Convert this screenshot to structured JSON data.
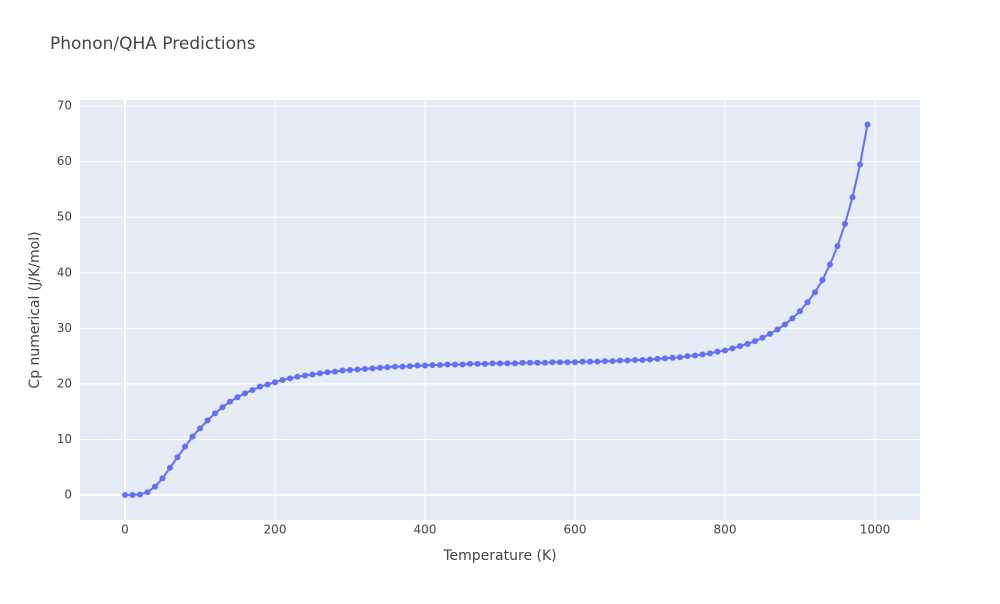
{
  "chart_data": {
    "type": "line",
    "title": "Phonon/QHA Predictions",
    "x_label": "Temperature (K)",
    "y_label": "Cp numerical (J/K/mol)",
    "x": [
      0,
      10,
      20,
      30,
      40,
      50,
      60,
      70,
      80,
      90,
      100,
      110,
      120,
      130,
      140,
      150,
      160,
      170,
      180,
      190,
      200,
      210,
      220,
      230,
      240,
      250,
      260,
      270,
      280,
      290,
      300,
      310,
      320,
      330,
      340,
      350,
      360,
      370,
      380,
      390,
      400,
      410,
      420,
      430,
      440,
      450,
      460,
      470,
      480,
      490,
      500,
      510,
      520,
      530,
      540,
      550,
      560,
      570,
      580,
      590,
      600,
      610,
      620,
      630,
      640,
      650,
      660,
      670,
      680,
      690,
      700,
      710,
      720,
      730,
      740,
      750,
      760,
      770,
      780,
      790,
      800,
      810,
      820,
      830,
      840,
      850,
      860,
      870,
      880,
      890,
      900,
      910,
      920,
      930,
      940,
      950,
      960,
      970,
      980,
      990
    ],
    "series": [
      {
        "color": "#636efa",
        "values": [
          0,
          0,
          0.1,
          0.5,
          1.5,
          3.0,
          4.9,
          6.8,
          8.7,
          10.5,
          12.0,
          13.4,
          14.7,
          15.8,
          16.8,
          17.6,
          18.3,
          18.9,
          19.5,
          19.9,
          20.3,
          20.7,
          21.0,
          21.3,
          21.5,
          21.7,
          21.9,
          22.1,
          22.2,
          22.4,
          22.5,
          22.6,
          22.7,
          22.8,
          22.9,
          23.0,
          23.1,
          23.1,
          23.2,
          23.3,
          23.3,
          23.4,
          23.4,
          23.5,
          23.5,
          23.5,
          23.6,
          23.6,
          23.6,
          23.7,
          23.7,
          23.7,
          23.7,
          23.8,
          23.8,
          23.8,
          23.8,
          23.9,
          23.9,
          23.9,
          23.9,
          24.0,
          24.0,
          24.0,
          24.1,
          24.1,
          24.2,
          24.2,
          24.3,
          24.3,
          24.4,
          24.5,
          24.6,
          24.7,
          24.8,
          25.0,
          25.1,
          25.3,
          25.5,
          25.8,
          26.0,
          26.4,
          26.8,
          27.2,
          27.7,
          28.3,
          29.0,
          29.8,
          30.7,
          31.8,
          33.1,
          34.7,
          36.5,
          38.7,
          41.5,
          44.8,
          48.8,
          53.6,
          59.5,
          66.7
        ]
      }
    ],
    "xlim": [
      -60,
      1060
    ],
    "ylim": [
      -4.5,
      71.1
    ],
    "xticks": [
      0,
      200,
      400,
      600,
      800,
      1000
    ],
    "yticks": [
      0,
      10,
      20,
      30,
      40,
      50,
      60,
      70
    ],
    "grid": true
  }
}
